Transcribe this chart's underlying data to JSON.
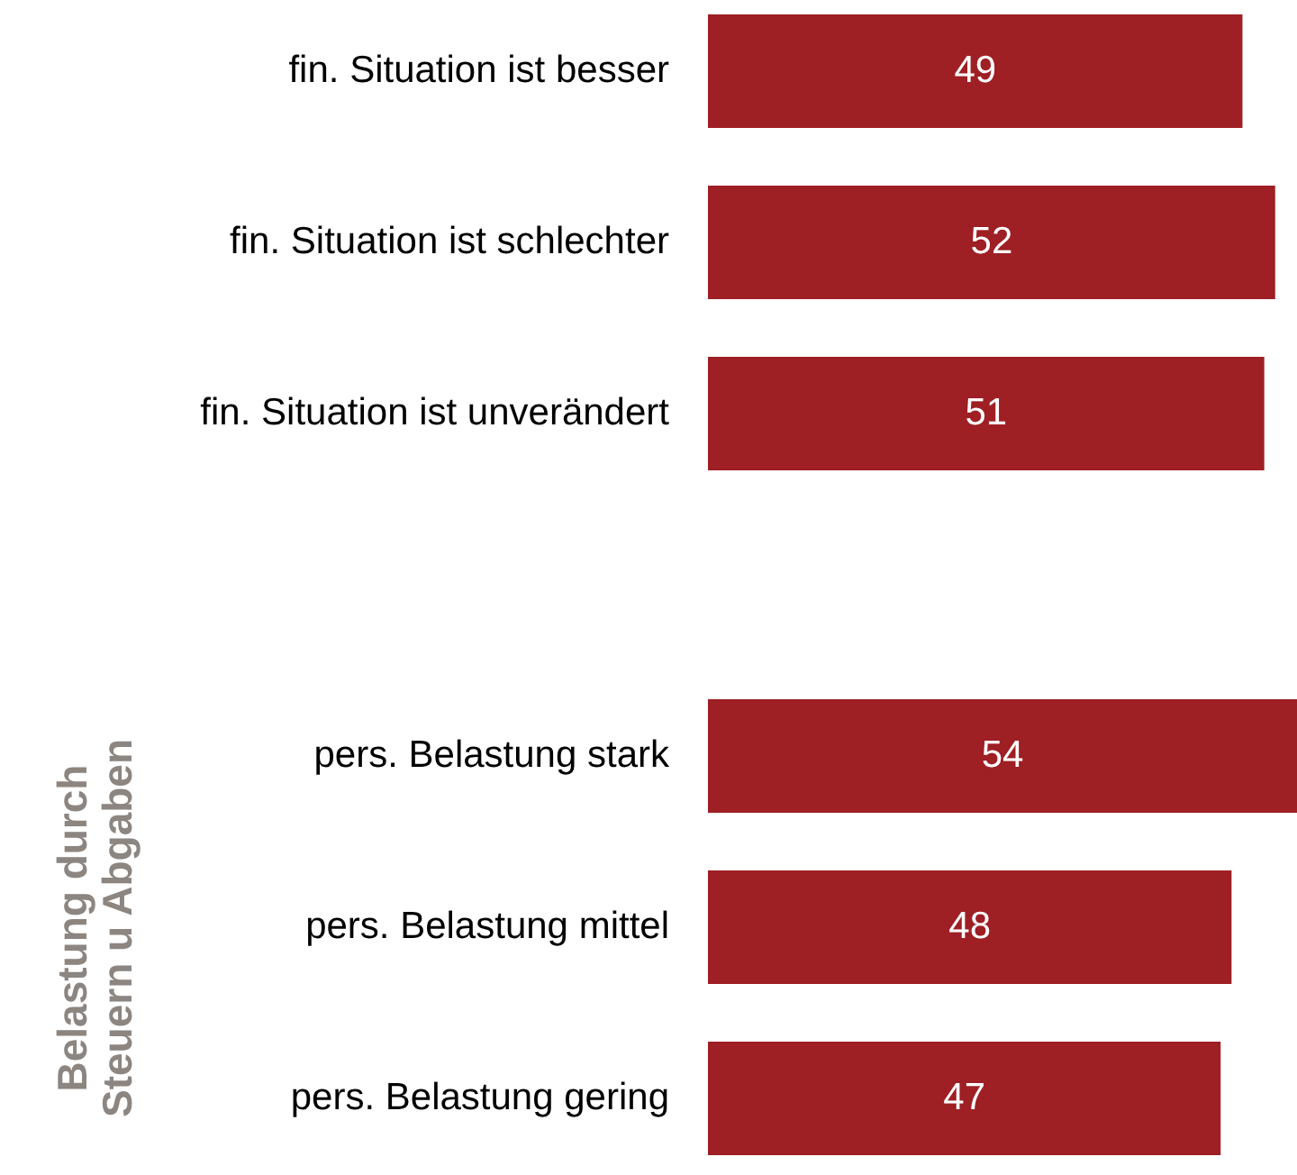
{
  "chart_data": {
    "type": "bar",
    "orientation": "horizontal",
    "categories": [
      "fin. Situation ist besser",
      "fin. Situation ist schlechter",
      "fin. Situation ist unverändert",
      null,
      "pers. Belastung stark",
      "pers. Belastung mittel",
      "pers. Belastung gering"
    ],
    "values": [
      49,
      52,
      51,
      null,
      54,
      48,
      47
    ],
    "color": "#9e1f24",
    "data_labels": true,
    "annotations": [
      "Belastung durch\nSteuern u Abgaben"
    ]
  }
}
